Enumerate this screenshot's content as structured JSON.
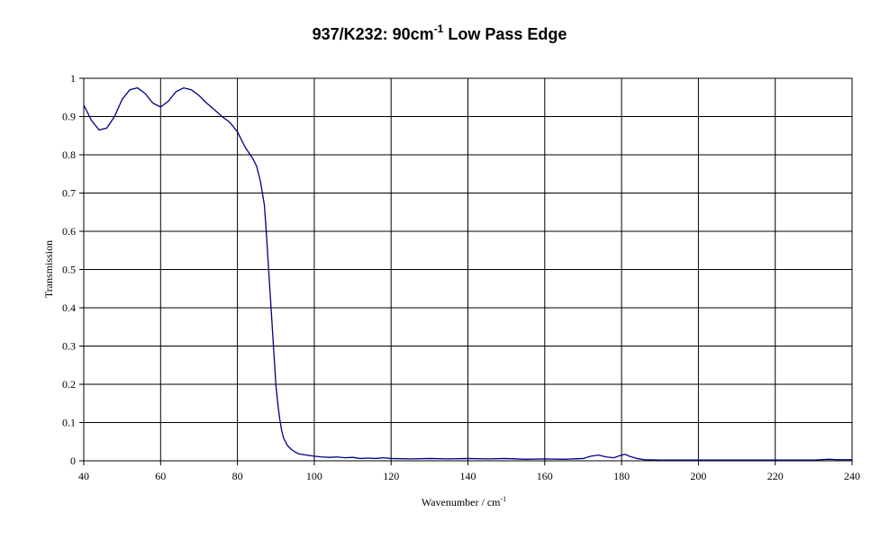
{
  "chart_data": {
    "type": "line",
    "title_main": "937/K232: 90cm",
    "title_sup": "-1",
    "title_tail": " Low Pass Edge",
    "xlabel_main": "Wavenumber / cm",
    "xlabel_sup": "-1",
    "ylabel": "Transmission",
    "xlim": [
      40,
      240
    ],
    "ylim": [
      0,
      1
    ],
    "x_ticks": [
      40,
      60,
      80,
      100,
      120,
      140,
      160,
      180,
      200,
      220,
      240
    ],
    "y_ticks": [
      0,
      0.1,
      0.2,
      0.3,
      0.4,
      0.5,
      0.6,
      0.7,
      0.8,
      0.9,
      1
    ],
    "y_tick_labels": [
      "0",
      "0.1",
      "0.2",
      "0.3",
      "0.4",
      "0.5",
      "0.6",
      "0.7",
      "0.8",
      "0.9",
      "1"
    ],
    "grid": true,
    "legend": "none",
    "series_color": "#000080",
    "series": [
      {
        "x": [
          40,
          42,
          44,
          46,
          48,
          50,
          52,
          54,
          56,
          58,
          60,
          62,
          64,
          66,
          68,
          70,
          72,
          74,
          76,
          78,
          80,
          82,
          84,
          85,
          86,
          87,
          87.5,
          88,
          88.5,
          89,
          89.5,
          90,
          90.5,
          91,
          91.5,
          92,
          93,
          94,
          95,
          96,
          98,
          100,
          102,
          104,
          106,
          108,
          110,
          112,
          114,
          116,
          118,
          120,
          125,
          130,
          135,
          140,
          145,
          150,
          155,
          160,
          165,
          170,
          172,
          174,
          176,
          178,
          180,
          181,
          182,
          184,
          186,
          190,
          195,
          200,
          205,
          210,
          215,
          220,
          225,
          230,
          232,
          234,
          236,
          238,
          240
        ],
        "y": [
          0.93,
          0.89,
          0.865,
          0.87,
          0.9,
          0.945,
          0.97,
          0.975,
          0.96,
          0.935,
          0.925,
          0.94,
          0.965,
          0.975,
          0.97,
          0.955,
          0.935,
          0.918,
          0.9,
          0.885,
          0.86,
          0.82,
          0.79,
          0.77,
          0.73,
          0.67,
          0.6,
          0.52,
          0.44,
          0.36,
          0.28,
          0.2,
          0.15,
          0.11,
          0.08,
          0.06,
          0.04,
          0.03,
          0.023,
          0.018,
          0.015,
          0.012,
          0.01,
          0.009,
          0.01,
          0.008,
          0.009,
          0.006,
          0.007,
          0.006,
          0.008,
          0.006,
          0.005,
          0.006,
          0.005,
          0.006,
          0.005,
          0.006,
          0.004,
          0.005,
          0.004,
          0.006,
          0.012,
          0.015,
          0.01,
          0.008,
          0.015,
          0.017,
          0.012,
          0.006,
          0.003,
          0.002,
          0.002,
          0.002,
          0.002,
          0.002,
          0.002,
          0.002,
          0.002,
          0.002,
          0.003,
          0.004,
          0.003,
          0.003,
          0.003
        ]
      }
    ]
  }
}
